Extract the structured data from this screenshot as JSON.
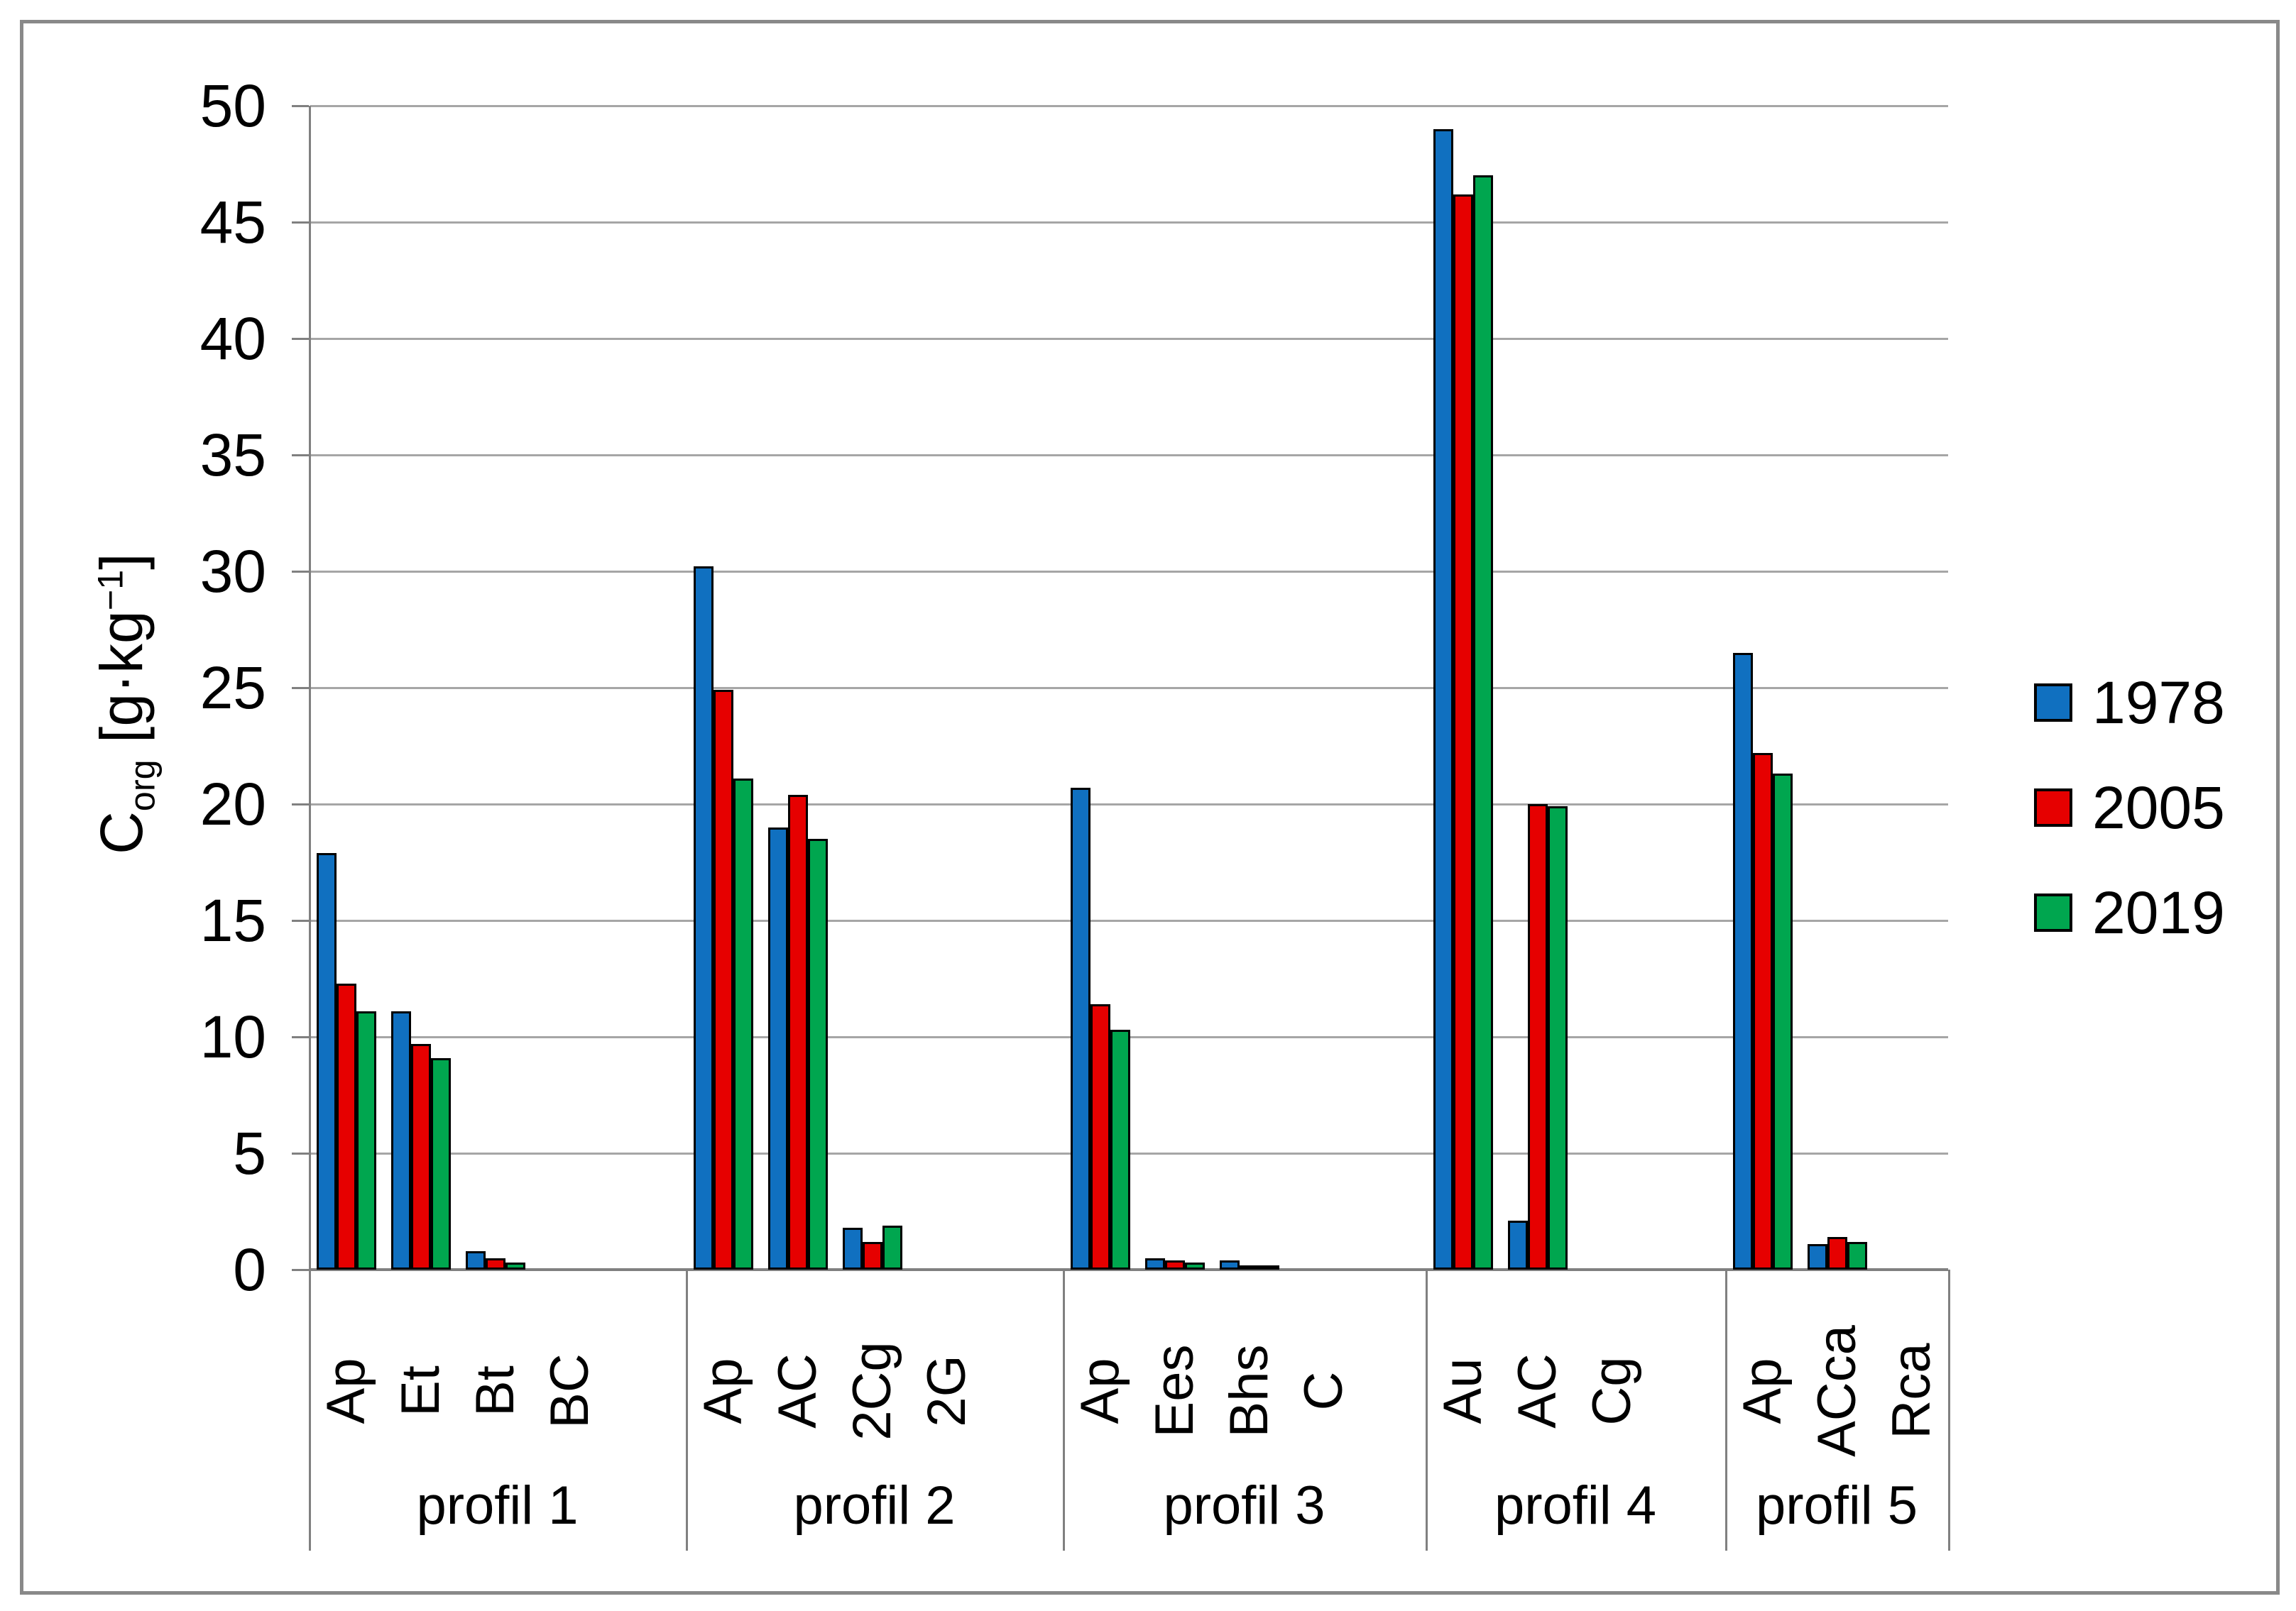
{
  "figure": {
    "background": "#FFFFFF",
    "border_color": "#898989",
    "gridline_color": "#A6A6A6",
    "axis_color": "#808080"
  },
  "y_axis": {
    "title_base": "C",
    "title_subscript": "org",
    "title_unit_open": " [g·kg",
    "title_superscript": "−1",
    "title_unit_close": "]",
    "min": 0,
    "max": 50,
    "tick_step": 5,
    "tick_labels": [
      "0",
      "5",
      "10",
      "15",
      "20",
      "25",
      "30",
      "35",
      "40",
      "45",
      "50"
    ]
  },
  "legend": {
    "position": "right",
    "entries": [
      {
        "label": "1978",
        "color": "#1070C0"
      },
      {
        "label": "2005",
        "color": "#E60000"
      },
      {
        "label": "2019",
        "color": "#00A64F"
      }
    ]
  },
  "chart_data": {
    "type": "bar",
    "title": "",
    "xlabel": "",
    "ylabel": "Corg [g·kg−1]",
    "ylim": [
      0,
      50
    ],
    "ytick_step": 5,
    "grid": true,
    "legend_position": "right",
    "series_names": [
      "1978",
      "2005",
      "2019"
    ],
    "series_colors": [
      "#1070C0",
      "#E60000",
      "#00A64F"
    ],
    "groups": [
      {
        "label": "profil 1",
        "horizons": [
          "Ap",
          "Et",
          "Bt",
          "BC"
        ],
        "values": [
          [
            17.9,
            12.3,
            11.1
          ],
          [
            11.1,
            9.7,
            9.1
          ],
          [
            0.8,
            0.5,
            0.3
          ],
          [
            0,
            0,
            0
          ]
        ]
      },
      {
        "label": "profil 2",
        "horizons": [
          "Ap",
          "AC",
          "2Cg",
          "2G"
        ],
        "values": [
          [
            30.2,
            24.9,
            21.1
          ],
          [
            19.0,
            20.4,
            18.5
          ],
          [
            1.8,
            1.2,
            1.9
          ],
          [
            0,
            0,
            0
          ]
        ]
      },
      {
        "label": "profil 3",
        "horizons": [
          "Ap",
          "Ees",
          "Bhs",
          "C"
        ],
        "values": [
          [
            20.7,
            11.4,
            10.3
          ],
          [
            0.5,
            0.4,
            0.3
          ],
          [
            0.4,
            0.1,
            0.1
          ],
          [
            0,
            0,
            0
          ]
        ]
      },
      {
        "label": "profil 4",
        "horizons": [
          "Au",
          "AC",
          "Cg"
        ],
        "values": [
          [
            49.0,
            46.2,
            47.0
          ],
          [
            2.1,
            20.0,
            19.9
          ],
          [
            0,
            0,
            0
          ]
        ]
      },
      {
        "label": "profil 5",
        "horizons": [
          "Ap",
          "ACca",
          "Rca"
        ],
        "values": [
          [
            26.5,
            22.2,
            21.3
          ],
          [
            1.1,
            1.4,
            1.2
          ],
          [
            0,
            0,
            0
          ]
        ]
      }
    ]
  }
}
